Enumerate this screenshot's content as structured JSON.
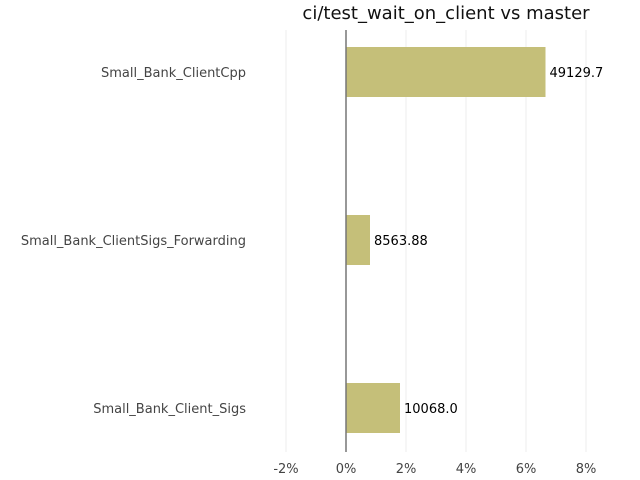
{
  "chart_data": {
    "type": "bar",
    "orientation": "horizontal",
    "title": "ci/test_wait_on_client vs master",
    "categories": [
      "Small_Bank_ClientCpp",
      "Small_Bank_ClientSigs_Forwarding",
      "Small_Bank_Client_Sigs"
    ],
    "values": [
      6.65,
      0.8,
      1.8
    ],
    "value_unit": "%",
    "data_labels": [
      "49129.7",
      "8563.88",
      "10068.0"
    ],
    "xlim": [
      -2,
      8
    ],
    "xticks": [
      -2,
      0,
      2,
      4,
      6,
      8
    ],
    "xtick_labels": [
      "-2%",
      "0%",
      "2%",
      "4%",
      "6%",
      "8%"
    ],
    "xlabel": "",
    "ylabel": "",
    "grid": true,
    "legend": "none",
    "colors": {
      "bar": "#c5bf79",
      "zero_line": "#777777",
      "grid": "#eeeeee"
    }
  }
}
